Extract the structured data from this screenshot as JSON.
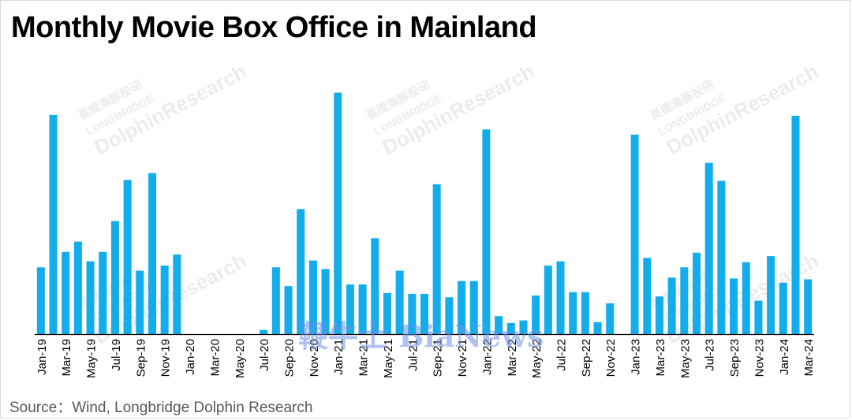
{
  "title": "Monthly Movie Box Office in Mainland",
  "source": "Source：Wind, Longbridge Dolphin Research",
  "watermark": {
    "brand": "DolphinResearch",
    "sub": "LONGBRIDGE",
    "cn": "長橋海豚投研",
    "overlay": "鞭牛士 BiaNews"
  },
  "colors": {
    "bar": "#13adeb",
    "axis": "#000000"
  },
  "chart_data": {
    "type": "bar",
    "x": [
      "Jan-19",
      "Feb-19",
      "Mar-19",
      "Apr-19",
      "May-19",
      "Jun-19",
      "Jul-19",
      "Aug-19",
      "Sep-19",
      "Oct-19",
      "Nov-19",
      "Dec-19",
      "Jan-20",
      "Feb-20",
      "Mar-20",
      "Apr-20",
      "May-20",
      "Jun-20",
      "Jul-20",
      "Aug-20",
      "Sep-20",
      "Oct-20",
      "Nov-20",
      "Dec-20",
      "Jan-21",
      "Feb-21",
      "Mar-21",
      "Apr-21",
      "May-21",
      "Jun-21",
      "Jul-21",
      "Aug-21",
      "Sep-21",
      "Oct-21",
      "Nov-21",
      "Dec-21",
      "Jan-22",
      "Feb-22",
      "Mar-22",
      "Apr-22",
      "May-22",
      "Jun-22",
      "Jul-22",
      "Aug-22",
      "Sep-22",
      "Oct-22",
      "Nov-22",
      "Dec-22",
      "Jan-23",
      "Feb-23",
      "Mar-23",
      "Apr-23",
      "May-23",
      "Jun-23",
      "Jul-23",
      "Aug-23",
      "Sep-23",
      "Oct-23",
      "Nov-23",
      "Dec-23",
      "Jan-24",
      "Feb-24",
      "Mar-24"
    ],
    "tick_labels": [
      "Jan-19",
      "Mar-19",
      "May-19",
      "Jul-19",
      "Sep-19",
      "Nov-19",
      "Jan-20",
      "Mar-20",
      "May-20",
      "Jul-20",
      "Sep-20",
      "Nov-20",
      "Jan-21",
      "Mar-21",
      "May-21",
      "Jul-21",
      "Sep-21",
      "Nov-21",
      "Jan-22",
      "Mar-22",
      "May-22",
      "Jul-22",
      "Sep-22",
      "Nov-22",
      "Jan-23",
      "Mar-23",
      "May-23",
      "Jul-23",
      "Sep-23",
      "Nov-23",
      "Jan-24",
      "Mar-24"
    ],
    "values": [
      7.8,
      25.6,
      9.6,
      10.8,
      8.5,
      9.6,
      13.2,
      18.0,
      7.4,
      18.8,
      8.0,
      9.3,
      0,
      0,
      0,
      0,
      0,
      0,
      0.5,
      7.8,
      5.6,
      14.6,
      8.6,
      7.6,
      28.2,
      5.8,
      5.8,
      11.2,
      4.8,
      7.4,
      4.7,
      4.7,
      17.5,
      4.3,
      6.2,
      6.2,
      23.9,
      2.1,
      1.3,
      1.6,
      4.5,
      8.0,
      8.5,
      4.9,
      4.9,
      1.4,
      3.6,
      0,
      23.3,
      8.9,
      4.4,
      6.6,
      7.8,
      9.5,
      20.0,
      17.9,
      6.5,
      8.4,
      3.9,
      9.1,
      6.0,
      25.5,
      6.4
    ],
    "ylim": [
      0,
      30
    ],
    "xlabel": "",
    "ylabel": "",
    "grid": false,
    "legend": "none"
  }
}
